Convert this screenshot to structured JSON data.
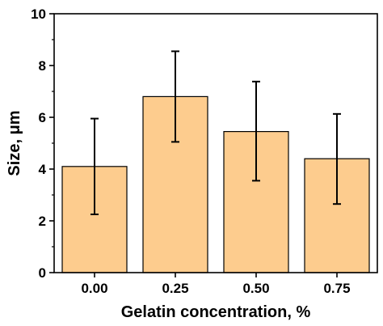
{
  "chart_data": {
    "type": "bar",
    "categories": [
      "0.00",
      "0.25",
      "0.50",
      "0.75"
    ],
    "values": [
      4.1,
      6.8,
      5.45,
      4.4
    ],
    "errors_low": [
      2.25,
      5.05,
      3.55,
      2.65
    ],
    "errors_high": [
      5.95,
      8.55,
      7.38,
      6.13
    ],
    "xlabel": "Gelatin concentration, %",
    "ylabel": "Size, μm",
    "ylim": [
      0,
      10
    ],
    "yticks": [
      0,
      2,
      4,
      6,
      8,
      10
    ],
    "ytick_labels": [
      "0",
      "2",
      "4",
      "6",
      "8",
      "10"
    ],
    "grid": false,
    "bar_color": "#FDCC8E",
    "bar_edge_color": "#000000"
  }
}
